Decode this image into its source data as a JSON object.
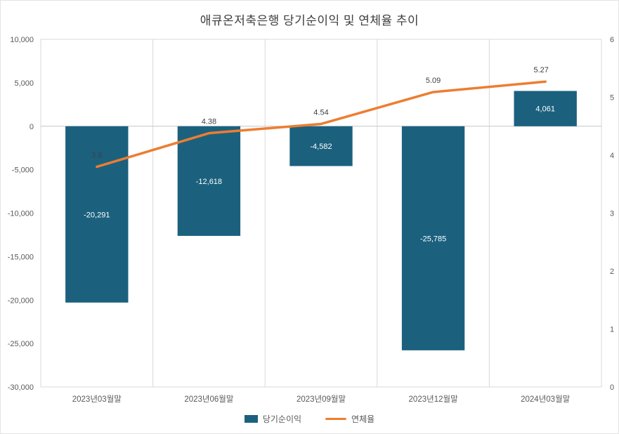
{
  "chart_data": {
    "type": "combo",
    "title": "애큐온저축은행 당기순이익 및 연체율 추이",
    "categories": [
      "2023년03월말",
      "2023년06월말",
      "2023년09월말",
      "2023년12월말",
      "2024년03월말"
    ],
    "series": [
      {
        "name": "당기순이익",
        "type": "bar",
        "axis": "left",
        "color": "#1b617e",
        "values": [
          -20291,
          -12618,
          -4582,
          -25785,
          4061
        ],
        "labels": [
          "-20,291",
          "-12,618",
          "-4,582",
          "-25,785",
          "4,061"
        ]
      },
      {
        "name": "연체율",
        "type": "line",
        "axis": "right",
        "color": "#ED7D31",
        "values": [
          3.8,
          4.38,
          4.54,
          5.09,
          5.27
        ],
        "labels": [
          "3.8",
          "4.38",
          "4.54",
          "5.09",
          "5.27"
        ]
      }
    ],
    "left_axis": {
      "min": -30000,
      "max": 10000,
      "step": 5000,
      "ticks": [
        "10,000",
        "5,000",
        "0",
        "-5,000",
        "-10,000",
        "-15,000",
        "-20,000",
        "-25,000",
        "-30,000"
      ]
    },
    "right_axis": {
      "min": 0,
      "max": 6,
      "step": 1,
      "ticks": [
        "6",
        "5",
        "4",
        "3",
        "2",
        "1",
        "0"
      ]
    },
    "legend": [
      "당기순이익",
      "연체율"
    ],
    "grid": "vertical",
    "colors": {
      "gridline": "#d9d9d9",
      "zero_line": "#c6c6c6",
      "axis_text": "#595959",
      "data_label_dark": "#404040",
      "data_label_light": "#ffffff"
    }
  }
}
